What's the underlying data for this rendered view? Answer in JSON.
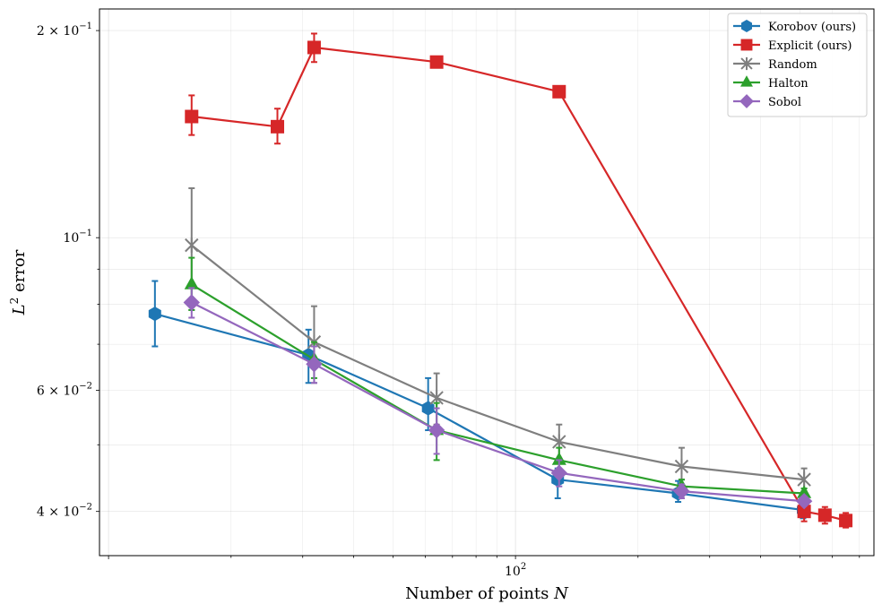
{
  "chart_data": {
    "type": "line",
    "xscale": "log",
    "yscale": "log",
    "title": "",
    "xlabel": "Number of points N",
    "ylabel": "L2 error",
    "xlim": [
      9.5,
      760
    ],
    "ylim": [
      0.0345,
      0.215
    ],
    "grid": true,
    "legend_position": "top-right",
    "x_major_ticks": [
      {
        "value": 100,
        "label": "10",
        "exp": "2"
      }
    ],
    "y_major_ticks": [
      {
        "value": 0.2,
        "mant": "2 × 10",
        "exp": "−1"
      },
      {
        "value": 0.1,
        "mant": "10",
        "exp": "−1"
      },
      {
        "value": 0.06,
        "mant": "6 × 10",
        "exp": "−2"
      },
      {
        "value": 0.04,
        "mant": "4 × 10",
        "exp": "−2"
      }
    ],
    "series": [
      {
        "name": "Korobov (ours)",
        "color": "#1f77b4",
        "marker": "hexagon",
        "x": [
          13,
          31,
          61,
          127,
          251,
          509
        ],
        "y": [
          0.0775,
          0.0675,
          0.0565,
          0.0445,
          0.0425,
          0.0402
        ],
        "err_low": [
          0.0695,
          0.0615,
          0.0525,
          0.0418,
          0.0413,
          0.0391
        ],
        "err_high": [
          0.0865,
          0.0735,
          0.0625,
          0.0462,
          0.0443,
          0.0414
        ]
      },
      {
        "name": "Explicit (ours)",
        "color": "#d62728",
        "marker": "square",
        "x": [
          16,
          26,
          32,
          64,
          128,
          512,
          576,
          648
        ],
        "y": [
          0.15,
          0.145,
          0.189,
          0.18,
          0.163,
          0.04,
          0.0395,
          0.0388
        ],
        "err_low": [
          0.141,
          0.137,
          0.18,
          0.177,
          0.163,
          0.0387,
          0.0384,
          0.0379
        ],
        "err_high": [
          0.161,
          0.154,
          0.198,
          0.183,
          0.163,
          0.0412,
          0.0406,
          0.0398
        ]
      },
      {
        "name": "Random",
        "color": "#7f7f7f",
        "marker": "x",
        "x": [
          16,
          32,
          64,
          128,
          256,
          512
        ],
        "y": [
          0.0975,
          0.0705,
          0.0585,
          0.0505,
          0.0465,
          0.0445
        ],
        "err_low": [
          0.0785,
          0.0615,
          0.0535,
          0.0475,
          0.0445,
          0.0428
        ],
        "err_high": [
          0.118,
          0.0795,
          0.0635,
          0.0535,
          0.0495,
          0.0462
        ]
      },
      {
        "name": "Halton",
        "color": "#2ca02c",
        "marker": "triangle",
        "x": [
          16,
          32,
          64,
          128,
          256,
          512
        ],
        "y": [
          0.0855,
          0.0665,
          0.0525,
          0.0475,
          0.0435,
          0.0425
        ],
        "err_low": [
          0.0785,
          0.0625,
          0.0475,
          0.0455,
          0.0425,
          0.0418
        ],
        "err_high": [
          0.0935,
          0.0705,
          0.0575,
          0.0495,
          0.0445,
          0.0432
        ]
      },
      {
        "name": "Sobol",
        "color": "#9467bd",
        "marker": "diamond",
        "x": [
          16,
          32,
          64,
          128,
          256,
          512
        ],
        "y": [
          0.0805,
          0.0655,
          0.0525,
          0.0455,
          0.0428,
          0.0414
        ],
        "err_low": [
          0.0765,
          0.0615,
          0.0485,
          0.0435,
          0.0418,
          0.0408
        ],
        "err_high": [
          0.0845,
          0.0695,
          0.0565,
          0.0475,
          0.0438,
          0.042
        ]
      }
    ]
  }
}
